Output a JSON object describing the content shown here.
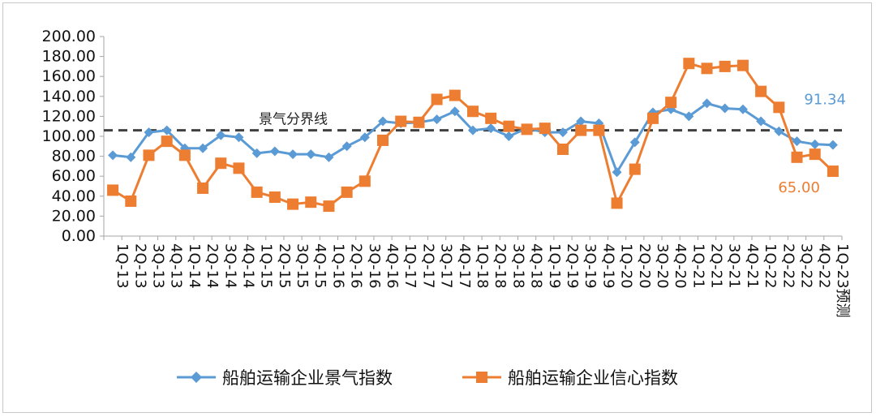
{
  "chart_data": {
    "type": "line",
    "title": "",
    "xlabel": "",
    "ylabel": "",
    "ylim": [
      0,
      200
    ],
    "ytick_step": 20,
    "ytick_labels": [
      "0.00",
      "20.00",
      "40.00",
      "60.00",
      "80.00",
      "100.00",
      "120.00",
      "140.00",
      "160.00",
      "180.00",
      "200.00"
    ],
    "categories": [
      "1Q-13",
      "2Q-13",
      "3Q-13",
      "4Q-13",
      "1Q-14",
      "2Q-14",
      "3Q-14",
      "4Q-14",
      "1Q-15",
      "2Q-15",
      "3Q-15",
      "4Q-15",
      "1Q-16",
      "2Q-16",
      "3Q-16",
      "4Q-16",
      "1Q-17",
      "2Q-17",
      "3Q-17",
      "4Q-17",
      "1Q-18",
      "2Q-18",
      "3Q-18",
      "4Q-18",
      "1Q-19",
      "2Q-19",
      "3Q-19",
      "4Q-19",
      "1Q-20",
      "2Q-20",
      "3Q-20",
      "4Q-20",
      "1Q-21",
      "2Q-21",
      "3Q-21",
      "4Q-21",
      "1Q-22",
      "2Q-22",
      "3Q-22",
      "4Q-22",
      "1Q-23预测"
    ],
    "series": [
      {
        "name": "船舶运输企业景气指数",
        "color": "#5b9bd5",
        "marker": "diamond",
        "values": [
          81,
          79,
          104,
          106,
          88,
          88,
          101,
          99,
          83,
          85,
          82,
          82,
          79,
          90,
          99,
          115,
          113,
          114,
          117,
          125,
          106,
          108,
          100,
          108,
          104,
          104,
          115,
          113,
          64,
          94,
          124,
          127,
          120,
          133,
          128,
          127,
          115,
          105,
          95,
          92,
          91.34
        ]
      },
      {
        "name": "船舶运输企业信心指数",
        "color": "#ed7d31",
        "marker": "square",
        "values": [
          46,
          35,
          81,
          95,
          81,
          48,
          73,
          68,
          44,
          39,
          32,
          34,
          30,
          44,
          55,
          96,
          115,
          114,
          137,
          141,
          125,
          118,
          110,
          107,
          108,
          87,
          106,
          106,
          33,
          67,
          118,
          134,
          173,
          168,
          170,
          171,
          145,
          129,
          79,
          82,
          65.0
        ]
      }
    ],
    "reference_line": {
      "label": "景气分界线",
      "value": 106
    },
    "annotations": [
      {
        "series": 0,
        "text": "91.34"
      },
      {
        "series": 1,
        "text": "65.00"
      }
    ],
    "legend": {
      "position": "bottom"
    },
    "grid": false
  }
}
